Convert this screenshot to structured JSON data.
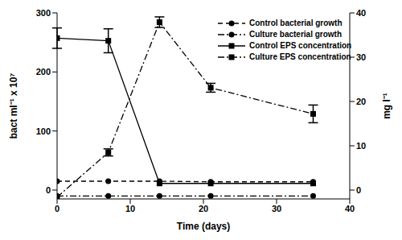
{
  "chart_data": {
    "type": "line",
    "x_label": "Time (days)",
    "y_label": "bact ml⁻¹ x 10⁷",
    "y2_label": "mg l⁻¹",
    "xlim": [
      0,
      40
    ],
    "xticks": [
      0,
      10,
      20,
      30,
      40
    ],
    "ylim": [
      -15,
      300
    ],
    "yticks": [
      0,
      100,
      200,
      300
    ],
    "y2lim": [
      -2,
      40
    ],
    "y2ticks": [
      0,
      10,
      20,
      30,
      40
    ],
    "legend": "upper right",
    "grid": false,
    "x": [
      0,
      7,
      14,
      21,
      35
    ],
    "series": [
      {
        "name": "Control bacterial growth",
        "color": "#000000",
        "marker": "circle",
        "line_style": "dashed",
        "values": [
          15,
          15,
          15,
          14,
          14
        ]
      },
      {
        "name": "Culture bacterial growth",
        "color": "#000000",
        "marker": "circle",
        "line_style": "dashdot",
        "values": [
          -10,
          -10,
          -10,
          -10,
          -10
        ]
      },
      {
        "name": "Control EPS concentration",
        "color": "#000000",
        "marker": "square",
        "line_style": "solid",
        "axis": "y2",
        "values": [
          34.3,
          33.7,
          1.5,
          1.5,
          1.5
        ],
        "errors": [
          2.3,
          2.7,
          0,
          0,
          0
        ]
      },
      {
        "name": "Culture EPS concentration",
        "color": "#000000",
        "marker": "square",
        "line_style": "dashdot",
        "axis": "y2",
        "values": [
          -1.6,
          8.5,
          37.9,
          23.1,
          17.2
        ],
        "errors": [
          0,
          0.8,
          1.2,
          1,
          2
        ]
      }
    ]
  }
}
